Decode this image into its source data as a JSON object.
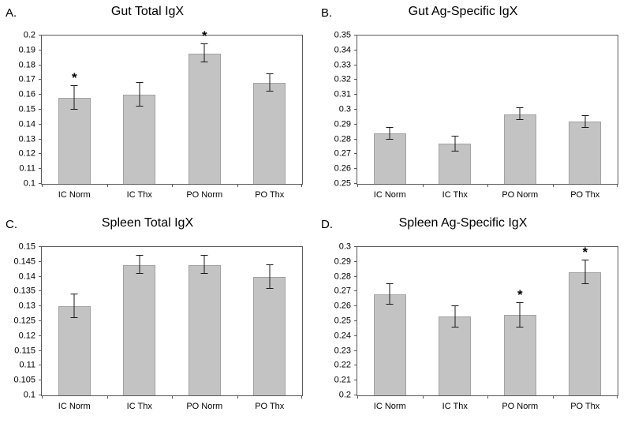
{
  "figure": {
    "background": "#ffffff",
    "bar_color": "#c3c3c3",
    "bar_border": "#a2a2a2",
    "axis_color": "#595959",
    "error_color": "#1a1a1a",
    "significance_marker": "*"
  },
  "chart_data": [
    {
      "id": "A",
      "type": "bar",
      "panel_label": "A.",
      "title": "Gut Total IgX",
      "categories": [
        "IC Norm",
        "IC Thx",
        "PO Norm",
        "PO Thx"
      ],
      "values": [
        0.158,
        0.16,
        0.188,
        0.168
      ],
      "errors": [
        0.008,
        0.008,
        0.006,
        0.006
      ],
      "significant": [
        true,
        false,
        true,
        false
      ],
      "ylim": [
        0.1,
        0.2
      ],
      "ytick_step": 0.01,
      "xlabel": "",
      "ylabel": "",
      "grid": false,
      "legend": null
    },
    {
      "id": "B",
      "type": "bar",
      "panel_label": "B.",
      "title": "Gut Ag-Specific IgX",
      "categories": [
        "IC Norm",
        "IC Thx",
        "PO Norm",
        "PO Thx"
      ],
      "values": [
        0.284,
        0.277,
        0.297,
        0.292
      ],
      "errors": [
        0.004,
        0.005,
        0.004,
        0.004
      ],
      "significant": [
        false,
        false,
        false,
        false
      ],
      "ylim": [
        0.25,
        0.35
      ],
      "ytick_step": 0.01,
      "xlabel": "",
      "ylabel": "",
      "grid": false,
      "legend": null
    },
    {
      "id": "C",
      "type": "bar",
      "panel_label": "C.",
      "title": "Spleen Total IgX",
      "categories": [
        "IC Norm",
        "IC Thx",
        "PO Norm",
        "PO Thx"
      ],
      "values": [
        0.13,
        0.144,
        0.144,
        0.14
      ],
      "errors": [
        0.004,
        0.003,
        0.003,
        0.004
      ],
      "significant": [
        false,
        false,
        false,
        false
      ],
      "ylim": [
        0.1,
        0.15
      ],
      "ytick_step": 0.005,
      "xlabel": "",
      "ylabel": "",
      "grid": false,
      "legend": null
    },
    {
      "id": "D",
      "type": "bar",
      "panel_label": "D.",
      "title": "Spleen Ag-Specific IgX",
      "categories": [
        "IC Norm",
        "IC Thx",
        "PO Norm",
        "PO Thx"
      ],
      "values": [
        0.268,
        0.253,
        0.254,
        0.283
      ],
      "errors": [
        0.007,
        0.007,
        0.008,
        0.008
      ],
      "significant": [
        false,
        false,
        true,
        true
      ],
      "ylim": [
        0.2,
        0.3
      ],
      "ytick_step": 0.01,
      "xlabel": "",
      "ylabel": "",
      "grid": false,
      "legend": null
    }
  ]
}
